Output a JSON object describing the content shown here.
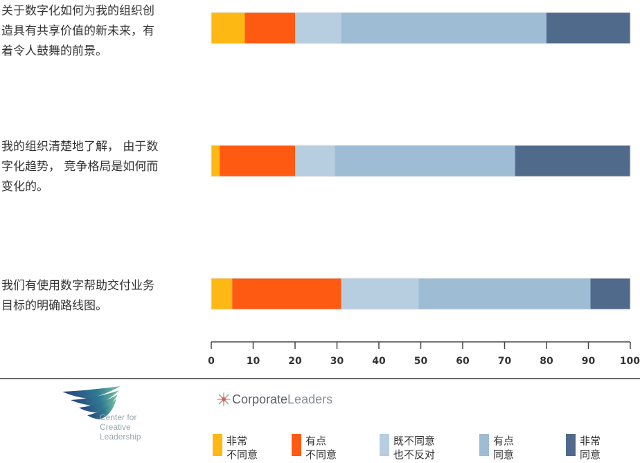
{
  "chart_data": {
    "type": "bar",
    "orientation": "horizontal-stacked",
    "categories": [
      "关于数字化如何为我的组织创造具有共享价值的新未来，有着令人鼓舞的前景。",
      "我的组织清楚地了解， 由于数字化趋势， 竞争格局是如何而变化的。",
      "我们有使用数字帮助交付业务目标的明确路线图。"
    ],
    "category_lines": [
      [
        "关于数字化如何为我的组织创",
        "造具有共享价值的新未来，有",
        "着令人鼓舞的前景。"
      ],
      [
        "我的组织清楚地了解， 由于数",
        "字化趋势， 竞争格局是如何而",
        "变化的。"
      ],
      [
        "我们有使用数字帮助交付业务",
        "目标的明确路线图。"
      ]
    ],
    "series": [
      {
        "name": "非常不同意",
        "name_lines": [
          "非常",
          "不同意"
        ],
        "color": "#FDB813",
        "values": [
          8,
          2,
          5
        ]
      },
      {
        "name": "有点不同意",
        "name_lines": [
          "有点",
          "不同意"
        ],
        "color": "#FF5A11",
        "values": [
          12,
          18,
          26
        ]
      },
      {
        "name": "既不同意也不反对",
        "name_lines": [
          "既不同意",
          "也不反对"
        ],
        "color": "#B7CEE0",
        "values": [
          11,
          9.5,
          18.5
        ]
      },
      {
        "name": "有点同意",
        "name_lines": [
          "有点",
          "同意"
        ],
        "color": "#9EBCD4",
        "values": [
          49,
          43,
          41
        ]
      },
      {
        "name": "非常同意",
        "name_lines": [
          "非常",
          "同意"
        ],
        "color": "#4F6A8A",
        "values": [
          20,
          27.5,
          9.5
        ]
      }
    ],
    "xlim": [
      0,
      100
    ],
    "xticks": [
      0,
      10,
      20,
      30,
      40,
      50,
      60,
      70,
      80,
      90,
      100
    ],
    "legend": "bottom",
    "grid": false
  },
  "logos": {
    "ccl_lines": [
      "Center for",
      "Creative",
      "Leadership"
    ],
    "cl_bold": "Corporate",
    "cl_light": "Leaders"
  }
}
